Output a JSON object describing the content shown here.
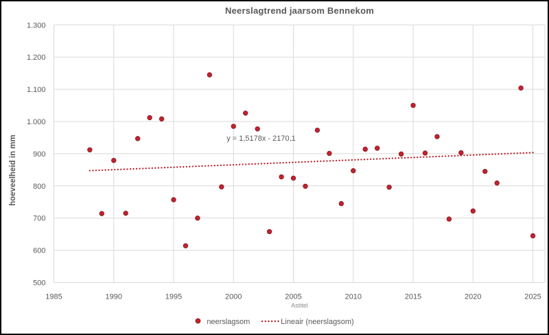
{
  "chart_data": {
    "type": "scatter",
    "title": "Neerslagtrend jaarsom Bennekom",
    "xlabel": "Astitel",
    "ylabel": "hoeveelheid in mm",
    "xlim": [
      1985,
      2026
    ],
    "ylim": [
      500,
      1300
    ],
    "grid": true,
    "legend_position": "bottom",
    "x_ticks": [
      1985,
      1990,
      1995,
      2000,
      2005,
      2010,
      2015,
      2020,
      2025
    ],
    "y_ticks": [
      {
        "value": 500,
        "label": "500"
      },
      {
        "value": 600,
        "label": "600"
      },
      {
        "value": 700,
        "label": "700"
      },
      {
        "value": 800,
        "label": "800"
      },
      {
        "value": 900,
        "label": "900"
      },
      {
        "value": 1000,
        "label": "1.000"
      },
      {
        "value": 1100,
        "label": "1.100"
      },
      {
        "value": 1200,
        "label": "1.200"
      },
      {
        "value": 1300,
        "label": "1.300"
      }
    ],
    "series": [
      {
        "name": "neerslagsom",
        "points": [
          [
            1988,
            912
          ],
          [
            1989,
            714
          ],
          [
            1990,
            879
          ],
          [
            1991,
            715
          ],
          [
            1992,
            947
          ],
          [
            1993,
            1012
          ],
          [
            1994,
            1008
          ],
          [
            1995,
            757
          ],
          [
            1996,
            614
          ],
          [
            1997,
            700
          ],
          [
            1998,
            1145
          ],
          [
            1999,
            797
          ],
          [
            2000,
            985
          ],
          [
            2001,
            1026
          ],
          [
            2002,
            977
          ],
          [
            2003,
            658
          ],
          [
            2004,
            828
          ],
          [
            2005,
            824
          ],
          [
            2006,
            799
          ],
          [
            2007,
            973
          ],
          [
            2008,
            901
          ],
          [
            2009,
            745
          ],
          [
            2010,
            847
          ],
          [
            2011,
            914
          ],
          [
            2012,
            917
          ],
          [
            2013,
            796
          ],
          [
            2014,
            899
          ],
          [
            2015,
            1050
          ],
          [
            2016,
            902
          ],
          [
            2017,
            953
          ],
          [
            2018,
            697
          ],
          [
            2019,
            903
          ],
          [
            2020,
            722
          ],
          [
            2021,
            845
          ],
          [
            2022,
            809
          ],
          [
            2024,
            1104
          ],
          [
            2025,
            645
          ]
        ]
      }
    ],
    "trendline": {
      "name": "Lineair (neerslagsom)",
      "equation": "y = 1,5178x - 2170,1",
      "slope": 1.5178,
      "intercept": -2170.1,
      "x_start": 1988,
      "x_end": 2025
    },
    "colors": {
      "marker": "#c4232f",
      "marker_border": "#8e1a22",
      "trend": "#c0202c",
      "grid": "#d9d9d9",
      "text": "#595959",
      "subtext": "#8c8c8c"
    }
  }
}
